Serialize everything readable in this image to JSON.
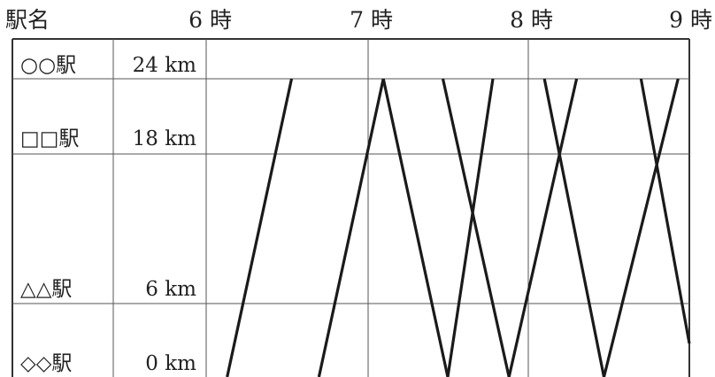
{
  "header": {
    "station_col": "駅名",
    "hours": [
      "6 時",
      "7 時",
      "8 時",
      "9 時"
    ]
  },
  "stations": [
    {
      "name": "○○駅",
      "distance": "24 km",
      "km": 24
    },
    {
      "name": "□□駅",
      "distance": "18 km",
      "km": 18
    },
    {
      "name": "△△駅",
      "distance": "6 km",
      "km": 6
    },
    {
      "name": "◇◇駅",
      "distance": "0 km",
      "km": 0
    }
  ],
  "chart_data": {
    "type": "line",
    "x_unit": "hour",
    "y_unit": "km",
    "xlim": [
      6,
      9
    ],
    "ylim": [
      0,
      24
    ],
    "series": [
      {
        "points": [
          [
            6.13,
            0
          ],
          [
            6.53,
            24
          ]
        ]
      },
      {
        "points": [
          [
            6.7,
            0
          ],
          [
            7.1,
            24
          ]
        ]
      },
      {
        "points": [
          [
            7.1,
            24
          ],
          [
            7.5,
            0
          ]
        ]
      },
      {
        "points": [
          [
            7.5,
            0
          ],
          [
            7.78,
            24
          ]
        ]
      },
      {
        "points": [
          [
            7.47,
            24
          ],
          [
            7.88,
            0
          ]
        ]
      },
      {
        "points": [
          [
            7.88,
            0
          ],
          [
            8.3,
            24
          ]
        ]
      },
      {
        "points": [
          [
            8.1,
            24
          ],
          [
            8.47,
            0
          ]
        ]
      },
      {
        "points": [
          [
            8.47,
            0
          ],
          [
            8.93,
            24
          ]
        ]
      },
      {
        "points": [
          [
            8.7,
            24
          ],
          [
            9.0,
            2.7
          ]
        ]
      }
    ]
  }
}
